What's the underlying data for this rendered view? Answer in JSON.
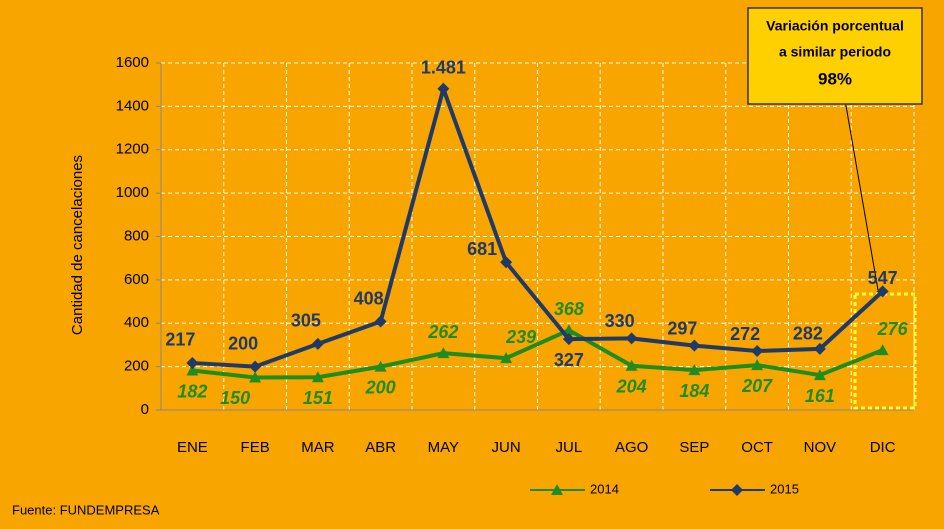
{
  "chart_data": {
    "type": "line",
    "y_label": "Cantidad de cancelaciones",
    "categories": [
      "ENE",
      "FEB",
      "MAR",
      "ABR",
      "MAY",
      "JUN",
      "JUL",
      "AGO",
      "SEP",
      "OCT",
      "NOV",
      "DIC"
    ],
    "series": [
      {
        "name": "2014",
        "color": "#1e8c1e",
        "marker": "triangle",
        "values": [
          182,
          150,
          151,
          200,
          262,
          239,
          368,
          204,
          184,
          207,
          161,
          276
        ]
      },
      {
        "name": "2015",
        "color": "#1f3a68",
        "marker": "diamond",
        "values": [
          217,
          200,
          305,
          408,
          1481,
          681,
          327,
          330,
          297,
          272,
          282,
          547
        ],
        "value_labels": [
          "217",
          "200",
          "305",
          "408",
          "1.481",
          "681",
          "327",
          "330",
          "297",
          "272",
          "282",
          "547"
        ]
      }
    ],
    "ylim": [
      0,
      1600
    ],
    "yticks": [
      0,
      200,
      400,
      600,
      800,
      1000,
      1200,
      1400,
      1600
    ],
    "grid": true,
    "legend": "bottom",
    "annotation": {
      "lines": [
        "Variación porcentual",
        "a similar periodo",
        "98%"
      ]
    },
    "source": "Fuente: FUNDEMPRESA"
  }
}
